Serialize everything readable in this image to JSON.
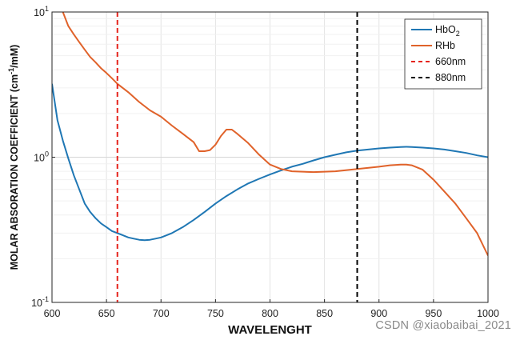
{
  "chart_data": {
    "type": "line",
    "xlabel": "WAVELENGHT",
    "ylabel_main": "MOLAR ABSORATION COEFFICIENT (cm",
    "ylabel_sup": "-1",
    "ylabel_end": "/mM)",
    "xlim": [
      600,
      1000
    ],
    "ylim": [
      0.1,
      10
    ],
    "yscale": "log",
    "grid": true,
    "legend_position": "top-right",
    "x_ticks": [
      "600",
      "650",
      "700",
      "750",
      "800",
      "850",
      "900",
      "950",
      "1000"
    ],
    "y_ticks": [
      {
        "base": "10",
        "exp": "1",
        "value": 10
      },
      {
        "base": "10",
        "exp": "0",
        "value": 1
      },
      {
        "base": "10",
        "exp": "-1",
        "value": 0.1
      }
    ],
    "series": [
      {
        "name": "HbO",
        "name_sub": "2",
        "color": "#1f77b4",
        "style": "solid",
        "x": [
          600,
          605,
          610,
          615,
          620,
          625,
          630,
          635,
          640,
          645,
          650,
          655,
          660,
          665,
          670,
          675,
          680,
          685,
          690,
          695,
          700,
          710,
          720,
          730,
          740,
          750,
          760,
          770,
          780,
          790,
          800,
          810,
          820,
          830,
          840,
          850,
          860,
          870,
          880,
          890,
          900,
          910,
          920,
          925,
          930,
          940,
          950,
          960,
          970,
          980,
          990,
          1000
        ],
        "y": [
          3.2,
          1.8,
          1.3,
          0.98,
          0.75,
          0.6,
          0.48,
          0.42,
          0.38,
          0.35,
          0.33,
          0.31,
          0.3,
          0.29,
          0.28,
          0.275,
          0.27,
          0.268,
          0.27,
          0.275,
          0.28,
          0.3,
          0.33,
          0.37,
          0.42,
          0.48,
          0.54,
          0.6,
          0.66,
          0.71,
          0.76,
          0.81,
          0.86,
          0.9,
          0.95,
          1.0,
          1.04,
          1.08,
          1.11,
          1.13,
          1.15,
          1.165,
          1.175,
          1.18,
          1.175,
          1.165,
          1.15,
          1.13,
          1.1,
          1.07,
          1.03,
          1.0
        ]
      },
      {
        "name": "RHb",
        "color": "#e0622a",
        "style": "solid",
        "x": [
          610,
          615,
          620,
          625,
          630,
          635,
          640,
          645,
          650,
          655,
          660,
          670,
          680,
          690,
          700,
          710,
          720,
          730,
          735,
          740,
          745,
          750,
          755,
          760,
          765,
          770,
          780,
          790,
          800,
          810,
          820,
          840,
          860,
          880,
          900,
          910,
          920,
          925,
          930,
          940,
          950,
          960,
          970,
          980,
          990,
          1000
        ],
        "y": [
          10,
          8,
          7,
          6.2,
          5.5,
          4.9,
          4.5,
          4.1,
          3.8,
          3.5,
          3.2,
          2.8,
          2.4,
          2.1,
          1.9,
          1.65,
          1.45,
          1.27,
          1.1,
          1.1,
          1.12,
          1.22,
          1.4,
          1.55,
          1.55,
          1.45,
          1.25,
          1.04,
          0.89,
          0.83,
          0.8,
          0.79,
          0.8,
          0.83,
          0.86,
          0.88,
          0.89,
          0.89,
          0.88,
          0.82,
          0.7,
          0.58,
          0.48,
          0.38,
          0.3,
          0.21
        ]
      }
    ],
    "vlines": [
      {
        "name": "660nm",
        "x": 660,
        "color": "#e5231b",
        "style": "dashed"
      },
      {
        "name": "880nm",
        "x": 880,
        "color": "#000000",
        "style": "dashed"
      }
    ]
  },
  "watermark": "CSDN @xiaobaibai_2021"
}
